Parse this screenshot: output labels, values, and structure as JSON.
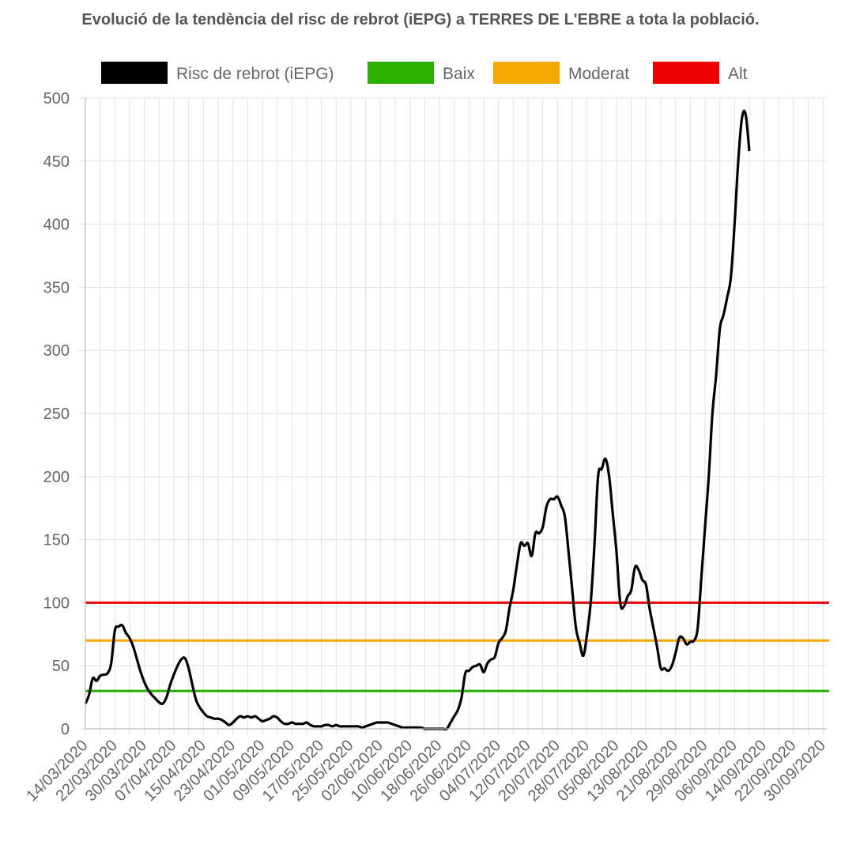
{
  "chart_data": {
    "type": "line",
    "title": "Evolució de la tendència del risc de rebrot (iEPG) a TERRES DE L'EBRE a tota la població.",
    "xlabel": "",
    "ylabel": "",
    "ylim": [
      0,
      500
    ],
    "y_ticks": [
      0,
      50,
      100,
      150,
      200,
      250,
      300,
      350,
      400,
      450,
      500
    ],
    "x_start": "14/03/2020",
    "x_end": "01/10/2020",
    "x_tick_labels": [
      "14/03/2020",
      "22/03/2020",
      "30/03/2020",
      "07/04/2020",
      "15/04/2020",
      "23/04/2020",
      "01/05/2020",
      "09/05/2020",
      "17/05/2020",
      "25/05/2020",
      "02/06/2020",
      "10/06/2020",
      "18/06/2020",
      "26/06/2020",
      "04/07/2020",
      "12/07/2020",
      "20/07/2020",
      "28/07/2020",
      "05/08/2020",
      "13/08/2020",
      "21/08/2020",
      "29/08/2020",
      "06/09/2020",
      "14/09/2020",
      "22/09/2020",
      "30/09/2020"
    ],
    "grid": true,
    "legend_position": "top",
    "series": [
      {
        "name": "Risc de rebrot (iEPG)",
        "color": "#000000",
        "points": [
          [
            "14/03/2020",
            20
          ],
          [
            "15/03/2020",
            27
          ],
          [
            "16/03/2020",
            40
          ],
          [
            "17/03/2020",
            38
          ],
          [
            "18/03/2020",
            42
          ],
          [
            "19/03/2020",
            43
          ],
          [
            "20/03/2020",
            44
          ],
          [
            "21/03/2020",
            52
          ],
          [
            "22/03/2020",
            78
          ],
          [
            "23/03/2020",
            81
          ],
          [
            "24/03/2020",
            82
          ],
          [
            "25/03/2020",
            76
          ],
          [
            "26/03/2020",
            72
          ],
          [
            "27/03/2020",
            65
          ],
          [
            "28/03/2020",
            55
          ],
          [
            "29/03/2020",
            45
          ],
          [
            "30/03/2020",
            37
          ],
          [
            "31/03/2020",
            31
          ],
          [
            "01/04/2020",
            27
          ],
          [
            "02/04/2020",
            24
          ],
          [
            "03/04/2020",
            21
          ],
          [
            "04/04/2020",
            20
          ],
          [
            "05/04/2020",
            25
          ],
          [
            "06/04/2020",
            35
          ],
          [
            "07/04/2020",
            43
          ],
          [
            "08/04/2020",
            50
          ],
          [
            "09/04/2020",
            55
          ],
          [
            "10/04/2020",
            56
          ],
          [
            "11/04/2020",
            48
          ],
          [
            "12/04/2020",
            35
          ],
          [
            "13/04/2020",
            23
          ],
          [
            "14/04/2020",
            17
          ],
          [
            "15/04/2020",
            13
          ],
          [
            "16/04/2020",
            10
          ],
          [
            "17/04/2020",
            9
          ],
          [
            "18/04/2020",
            8
          ],
          [
            "19/04/2020",
            8
          ],
          [
            "20/04/2020",
            7
          ],
          [
            "21/04/2020",
            5
          ],
          [
            "22/04/2020",
            3
          ],
          [
            "23/04/2020",
            5
          ],
          [
            "24/04/2020",
            8
          ],
          [
            "25/04/2020",
            10
          ],
          [
            "26/04/2020",
            9
          ],
          [
            "27/04/2020",
            10
          ],
          [
            "28/04/2020",
            9
          ],
          [
            "29/04/2020",
            10
          ],
          [
            "30/04/2020",
            8
          ],
          [
            "01/05/2020",
            6
          ],
          [
            "02/05/2020",
            7
          ],
          [
            "03/05/2020",
            8
          ],
          [
            "04/05/2020",
            10
          ],
          [
            "05/05/2020",
            9
          ],
          [
            "06/05/2020",
            6
          ],
          [
            "07/05/2020",
            4
          ],
          [
            "08/05/2020",
            4
          ],
          [
            "09/05/2020",
            5
          ],
          [
            "10/05/2020",
            4
          ],
          [
            "11/05/2020",
            4
          ],
          [
            "12/05/2020",
            4
          ],
          [
            "13/05/2020",
            5
          ],
          [
            "14/05/2020",
            3
          ],
          [
            "15/05/2020",
            2
          ],
          [
            "16/05/2020",
            2
          ],
          [
            "17/05/2020",
            2
          ],
          [
            "18/05/2020",
            3
          ],
          [
            "19/05/2020",
            3
          ],
          [
            "20/05/2020",
            2
          ],
          [
            "21/05/2020",
            3
          ],
          [
            "22/05/2020",
            2
          ],
          [
            "23/05/2020",
            2
          ],
          [
            "24/05/2020",
            2
          ],
          [
            "25/05/2020",
            2
          ],
          [
            "26/05/2020",
            2
          ],
          [
            "27/05/2020",
            2
          ],
          [
            "28/05/2020",
            1
          ],
          [
            "29/05/2020",
            2
          ],
          [
            "30/05/2020",
            3
          ],
          [
            "31/05/2020",
            4
          ],
          [
            "01/06/2020",
            5
          ],
          [
            "02/06/2020",
            5
          ],
          [
            "03/06/2020",
            5
          ],
          [
            "04/06/2020",
            5
          ],
          [
            "05/06/2020",
            4
          ],
          [
            "06/06/2020",
            3
          ],
          [
            "07/06/2020",
            2
          ],
          [
            "08/06/2020",
            1
          ],
          [
            "09/06/2020",
            1
          ],
          [
            "10/06/2020",
            1
          ],
          [
            "11/06/2020",
            1
          ],
          [
            "12/06/2020",
            1
          ],
          [
            "13/06/2020",
            1
          ],
          [
            "14/06/2020",
            0
          ],
          [
            "15/06/2020",
            0
          ],
          [
            "16/06/2020",
            0
          ],
          [
            "17/06/2020",
            0
          ],
          [
            "18/06/2020",
            0
          ],
          [
            "19/06/2020",
            0
          ],
          [
            "20/06/2020",
            0
          ],
          [
            "21/06/2020",
            5
          ],
          [
            "22/06/2020",
            10
          ],
          [
            "23/06/2020",
            15
          ],
          [
            "24/06/2020",
            25
          ],
          [
            "25/06/2020",
            44
          ],
          [
            "26/06/2020",
            46
          ],
          [
            "27/06/2020",
            49
          ],
          [
            "28/06/2020",
            50
          ],
          [
            "29/06/2020",
            51
          ],
          [
            "30/06/2020",
            45
          ],
          [
            "01/07/2020",
            52
          ],
          [
            "02/07/2020",
            55
          ],
          [
            "03/07/2020",
            57
          ],
          [
            "04/07/2020",
            68
          ],
          [
            "05/07/2020",
            72
          ],
          [
            "06/07/2020",
            78
          ],
          [
            "07/07/2020",
            96
          ],
          [
            "08/07/2020",
            110
          ],
          [
            "09/07/2020",
            130
          ],
          [
            "10/07/2020",
            147
          ],
          [
            "11/07/2020",
            145
          ],
          [
            "12/07/2020",
            147
          ],
          [
            "13/07/2020",
            137
          ],
          [
            "14/07/2020",
            155
          ],
          [
            "15/07/2020",
            155
          ],
          [
            "16/07/2020",
            160
          ],
          [
            "17/07/2020",
            176
          ],
          [
            "18/07/2020",
            182
          ],
          [
            "19/07/2020",
            182
          ],
          [
            "20/07/2020",
            184
          ],
          [
            "21/07/2020",
            177
          ],
          [
            "22/07/2020",
            168
          ],
          [
            "23/07/2020",
            140
          ],
          [
            "24/07/2020",
            110
          ],
          [
            "25/07/2020",
            80
          ],
          [
            "26/07/2020",
            68
          ],
          [
            "27/07/2020",
            58
          ],
          [
            "28/07/2020",
            75
          ],
          [
            "29/07/2020",
            100
          ],
          [
            "30/07/2020",
            145
          ],
          [
            "31/07/2020",
            200
          ],
          [
            "01/08/2020",
            206
          ],
          [
            "02/08/2020",
            214
          ],
          [
            "03/08/2020",
            200
          ],
          [
            "04/08/2020",
            170
          ],
          [
            "05/08/2020",
            140
          ],
          [
            "06/08/2020",
            100
          ],
          [
            "07/08/2020",
            97
          ],
          [
            "08/08/2020",
            105
          ],
          [
            "09/08/2020",
            110
          ],
          [
            "10/08/2020",
            128
          ],
          [
            "11/08/2020",
            126
          ],
          [
            "12/08/2020",
            118
          ],
          [
            "13/08/2020",
            114
          ],
          [
            "14/08/2020",
            95
          ],
          [
            "15/08/2020",
            80
          ],
          [
            "16/08/2020",
            65
          ],
          [
            "17/08/2020",
            48
          ],
          [
            "18/08/2020",
            48
          ],
          [
            "19/08/2020",
            46
          ],
          [
            "20/08/2020",
            50
          ],
          [
            "21/08/2020",
            60
          ],
          [
            "22/08/2020",
            72
          ],
          [
            "23/08/2020",
            72
          ],
          [
            "24/08/2020",
            67
          ],
          [
            "25/08/2020",
            69
          ],
          [
            "26/08/2020",
            70
          ],
          [
            "27/08/2020",
            80
          ],
          [
            "28/08/2020",
            120
          ],
          [
            "29/08/2020",
            160
          ],
          [
            "30/08/2020",
            200
          ],
          [
            "31/08/2020",
            250
          ],
          [
            "01/09/2020",
            280
          ],
          [
            "02/09/2020",
            317
          ],
          [
            "03/09/2020",
            328
          ],
          [
            "04/09/2020",
            342
          ],
          [
            "05/09/2020",
            358
          ],
          [
            "06/09/2020",
            400
          ],
          [
            "07/09/2020",
            450
          ],
          [
            "08/09/2020",
            484
          ],
          [
            "09/09/2020",
            487
          ],
          [
            "10/09/2020",
            458
          ]
        ]
      },
      {
        "name": "Baix",
        "color": "#2cb000",
        "constant": 30
      },
      {
        "name": "Moderat",
        "color": "#f5a800",
        "constant": 70
      },
      {
        "name": "Alt",
        "color": "#ee0000",
        "constant": 100
      }
    ]
  }
}
